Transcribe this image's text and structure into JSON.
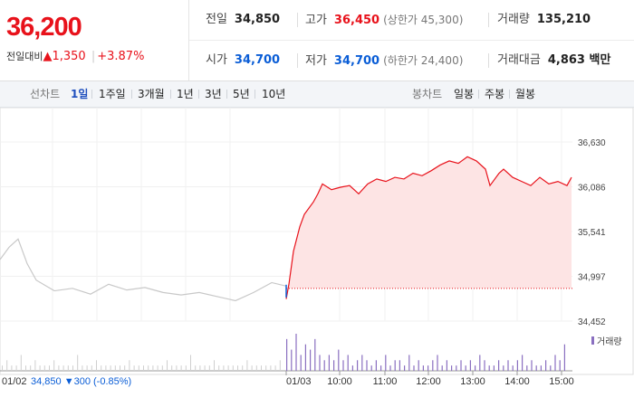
{
  "quote": {
    "price": "36,200",
    "change_label": "전일대비",
    "change_arrow": "▲",
    "change": "1,350",
    "change_pct": "+3.87%"
  },
  "stats": {
    "prev_close": {
      "label": "전일",
      "value": "34,850"
    },
    "high": {
      "label": "고가",
      "value": "36,450",
      "note": "(상한가 45,300)"
    },
    "volume": {
      "label": "거래량",
      "value": "135,210"
    },
    "open": {
      "label": "시가",
      "value": "34,700"
    },
    "low": {
      "label": "저가",
      "value": "34,700",
      "note": "(하한가 24,400)"
    },
    "amount": {
      "label": "거래대금",
      "value": "4,863 백만"
    }
  },
  "toolbar": {
    "line_label": "선차트",
    "line_periods": [
      "1일",
      "1주일",
      "3개월",
      "1년",
      "3년",
      "5년",
      "10년"
    ],
    "active_period": "1일",
    "candle_label": "봉차트",
    "candle_periods": [
      "일봉",
      "주봉",
      "월봉"
    ]
  },
  "chart_data": {
    "type": "line",
    "title": "",
    "xlabel": "",
    "ylabel": "",
    "ylim": [
      34452,
      36630
    ],
    "y_ticks": [
      "36,630",
      "36,086",
      "35,541",
      "34,997",
      "34,452"
    ],
    "x_ticks": [
      "10:00",
      "11:00",
      "12:00",
      "13:00",
      "14:00",
      "15:00"
    ],
    "prev_day_tag": "01/02",
    "today_tag": "01/03",
    "baseline": 34850,
    "prev_day_summary": {
      "close": "34,850",
      "arrow": "▼",
      "change": "300",
      "pct": "(-0.85%)"
    },
    "volume_legend": "거래량",
    "series": [
      {
        "x": [
          0,
          10,
          20,
          30,
          40,
          60,
          80,
          100,
          120,
          140,
          160,
          180,
          200,
          220,
          240,
          260,
          280,
          300,
          315
        ],
        "values": [
          35200,
          35350,
          35450,
          35150,
          34950,
          34820,
          34850,
          34780,
          34900,
          34830,
          34860,
          34800,
          34770,
          34800,
          34750,
          34700,
          34800,
          34920,
          34880
        ]
      },
      {
        "x": [
          0,
          3,
          8,
          15,
          20,
          30,
          35,
          40,
          50,
          60,
          70,
          80,
          90,
          100,
          110,
          120,
          130,
          140,
          150,
          160,
          170,
          180,
          190,
          200,
          210,
          220,
          225,
          235,
          240,
          250,
          260,
          270,
          280,
          290,
          300,
          310,
          315
        ],
        "values": [
          34720,
          34900,
          35300,
          35600,
          35750,
          35900,
          36000,
          36120,
          36050,
          36080,
          36100,
          36000,
          36120,
          36180,
          36150,
          36200,
          36180,
          36250,
          36220,
          36280,
          36350,
          36400,
          36370,
          36450,
          36400,
          36300,
          36100,
          36250,
          36300,
          36200,
          36150,
          36100,
          36200,
          36120,
          36150,
          36100,
          36200
        ]
      }
    ],
    "volume_prev": [
      1,
      2,
      1,
      1,
      3,
      1,
      1,
      2,
      1,
      1,
      1,
      2,
      1,
      1,
      1,
      1,
      3,
      1,
      1,
      1,
      2,
      1,
      1,
      1,
      1,
      1,
      1,
      2,
      1,
      1,
      1,
      1,
      1,
      1,
      1,
      2,
      1,
      1,
      1,
      1,
      3,
      1,
      1,
      1,
      1,
      2,
      1,
      1,
      1,
      1,
      1,
      1,
      2,
      1,
      1,
      1,
      1,
      1,
      1,
      2
    ],
    "volume_today": [
      6,
      4,
      7,
      3,
      5,
      4,
      6,
      3,
      2,
      3,
      2,
      4,
      2,
      3,
      1,
      2,
      3,
      2,
      1,
      2,
      1,
      3,
      1,
      2,
      2,
      1,
      3,
      1,
      2,
      1,
      1,
      2,
      3,
      1,
      2,
      1,
      1,
      2,
      1,
      2,
      1,
      3,
      2,
      1,
      1,
      2,
      1,
      2,
      1,
      2,
      3,
      1,
      2,
      1,
      1,
      2,
      1,
      3,
      2,
      5
    ]
  },
  "colors": {
    "up": "#e8121b",
    "down": "#0a5dd6",
    "line_today": "#e8121b",
    "fill_today": "#fde4e4",
    "line_prev": "#c8c8c8",
    "volume": "#8a6fc0",
    "volume_prev": "#cfcfcf"
  }
}
